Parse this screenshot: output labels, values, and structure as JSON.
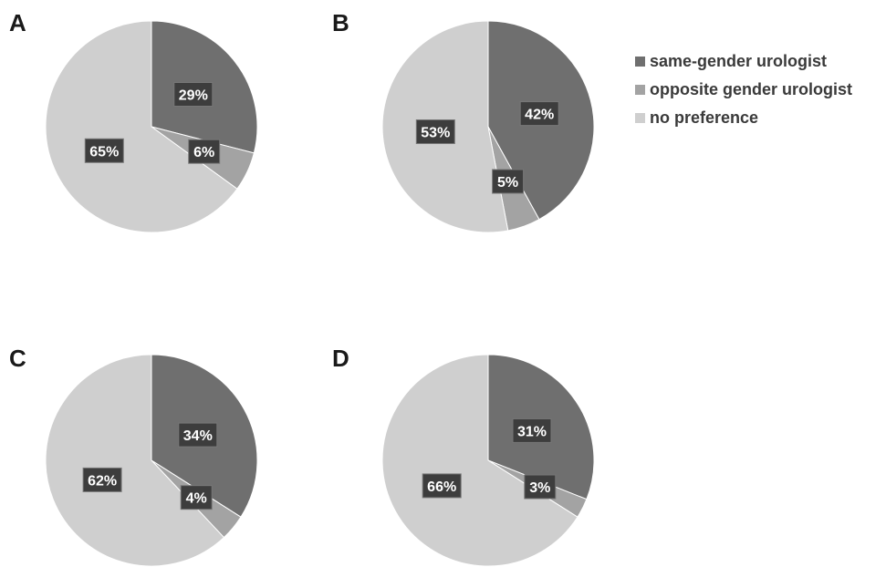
{
  "chart_data": [
    {
      "type": "pie",
      "panel": "A",
      "categories": [
        "same-gender urologist",
        "opposite gender urologist",
        "no preference"
      ],
      "values": [
        29,
        6,
        65
      ],
      "data_labels": [
        "29%",
        "6%",
        "65%"
      ]
    },
    {
      "type": "pie",
      "panel": "B",
      "categories": [
        "same-gender urologist",
        "opposite gender urologist",
        "no preference"
      ],
      "values": [
        42,
        5,
        53
      ],
      "data_labels": [
        "42%",
        "5%",
        "53%"
      ]
    },
    {
      "type": "pie",
      "panel": "C",
      "categories": [
        "same-gender urologist",
        "opposite gender urologist",
        "no preference"
      ],
      "values": [
        34,
        4,
        62
      ],
      "data_labels": [
        "34%",
        "4%",
        "62%"
      ]
    },
    {
      "type": "pie",
      "panel": "D",
      "categories": [
        "same-gender urologist",
        "opposite gender urologist",
        "no preference"
      ],
      "values": [
        31,
        3,
        66
      ],
      "data_labels": [
        "31%",
        "3%",
        "66%"
      ]
    }
  ],
  "legend": {
    "placement": "top-right",
    "items": [
      {
        "label": "same-gender urologist",
        "color": "#6f6f6f"
      },
      {
        "label": "opposite gender urologist",
        "color": "#a3a3a3"
      },
      {
        "label": "no preference",
        "color": "#cfcfcf"
      }
    ]
  },
  "colors": {
    "label_box": "#3d3d3d",
    "label_text": "#ffffff",
    "slice_border": "#ffffff"
  }
}
